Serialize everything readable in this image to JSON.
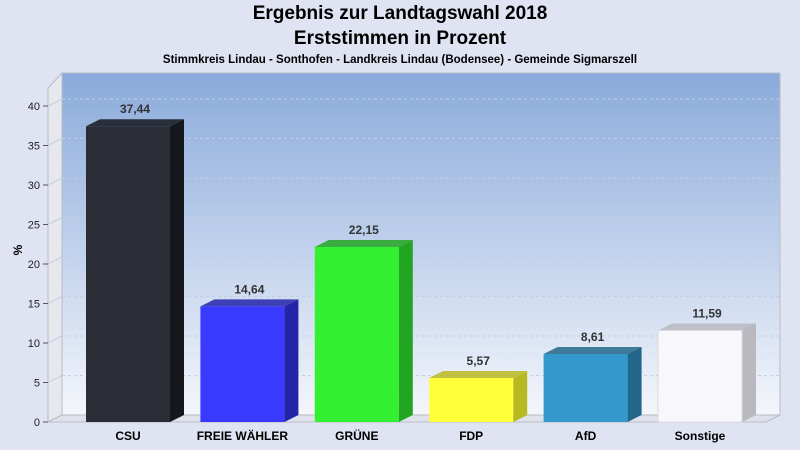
{
  "header": {
    "title": "Ergebnis zur Landtagswahl 2018",
    "subtitle": "Erststimmen in Prozent",
    "caption": "Stimmkreis Lindau - Sonthofen - Landkreis Lindau (Bodensee) - Gemeinde Sigmarszell"
  },
  "chart_data": {
    "type": "bar",
    "title": "Ergebnis zur Landtagswahl 2018",
    "subtitle": "Erststimmen in Prozent",
    "xlabel": "",
    "ylabel": "%",
    "ylim": [
      0,
      40
    ],
    "yticks": [
      "0",
      "5",
      "10",
      "15",
      "20",
      "25",
      "30",
      "35",
      "40"
    ],
    "categories": [
      "CSU",
      "FREIE WÄHLER",
      "GRÜNE",
      "FDP",
      "AfD",
      "Sonstige"
    ],
    "values": [
      37.44,
      14.64,
      22.15,
      5.57,
      8.61,
      11.59
    ],
    "value_labels": [
      "37,44",
      "14,64",
      "22,15",
      "5,57",
      "8,61",
      "11,59"
    ],
    "colors": [
      "#2a2d35",
      "#3a3aff",
      "#33f033",
      "#ffff3a",
      "#3399cc",
      "#f8f8fc"
    ],
    "side_colors": [
      "#15171c",
      "#2424a8",
      "#22a522",
      "#b8b820",
      "#22668a",
      "#b8b8be"
    ],
    "grid": true,
    "legend": "none"
  }
}
